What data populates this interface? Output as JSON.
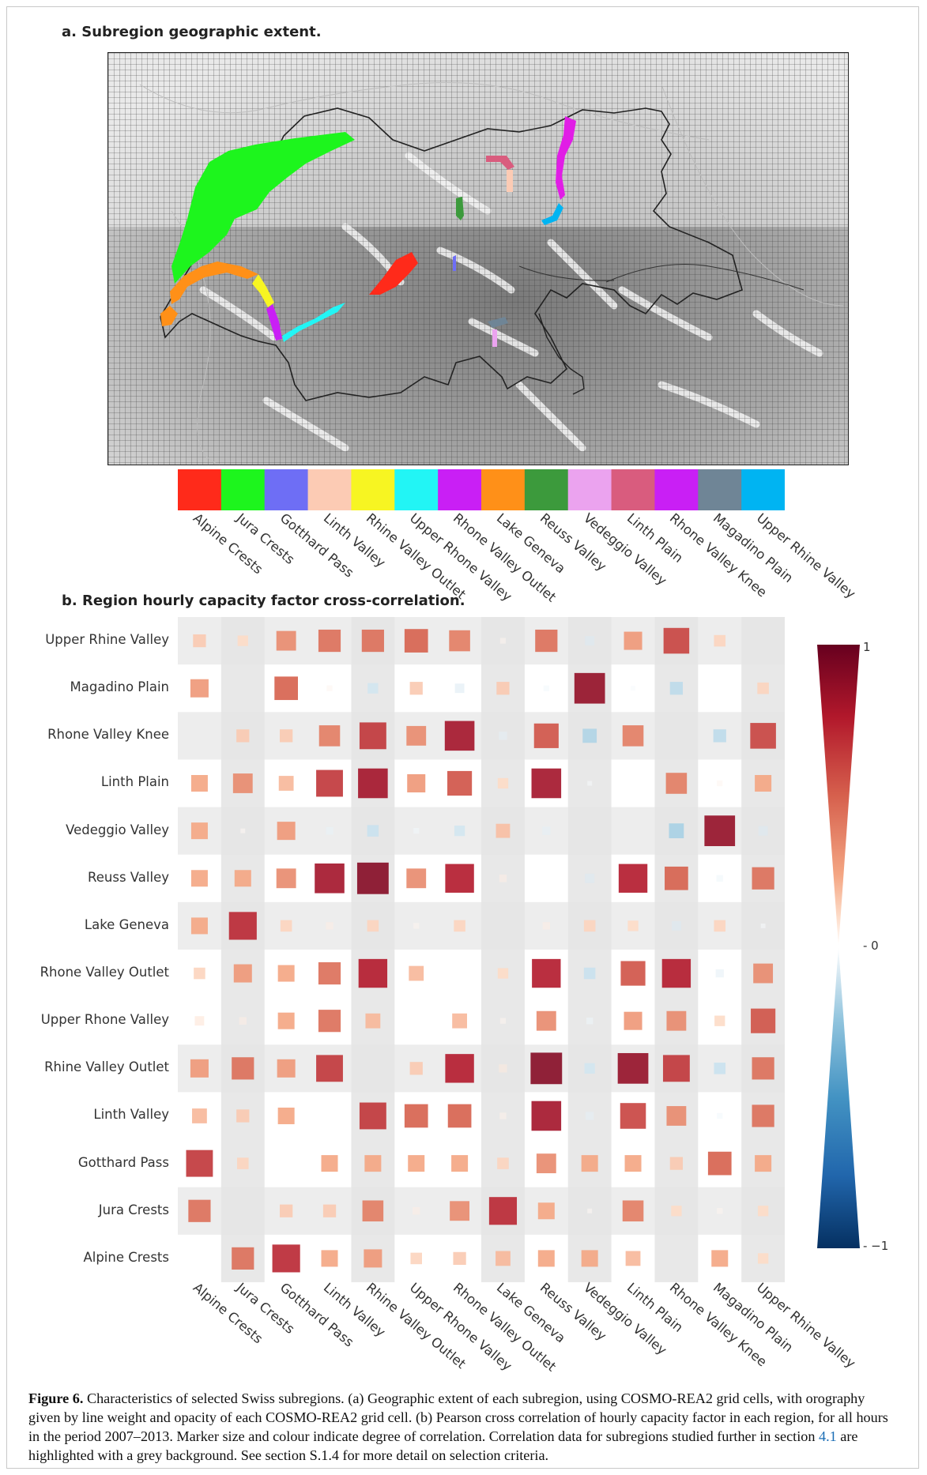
{
  "panel_a": {
    "title": "a. Subregion geographic extent."
  },
  "panel_b": {
    "title": "b. Region hourly capacity factor cross-correlation."
  },
  "colors": {
    "Alpine Crests": "#ff2a1a",
    "Jura Crests": "#1df51d",
    "Gotthard Pass": "#6e6ef5",
    "Linth Valley": "#fccbb4",
    "Rhine Valley Outlet": "#f7f522",
    "Upper Rhone Valley": "#22f5f5",
    "Rhone Valley Outlet": "#c91ff5",
    "Lake Geneva": "#ff9018",
    "Reuss Valley": "#3c9a3c",
    "Vedeggio Valley": "#eba3ef",
    "Linth Plain": "#d95c7e",
    "Rhone Valley Knee": "#c91ff5",
    "Magadino Plain": "#6f8596",
    "Upper Rhine Valley": "#00b4f2"
  },
  "chart_data": {
    "type": "heatmap",
    "title": "b. Region hourly capacity factor cross-correlation.",
    "regions_x": [
      "Alpine Crests",
      "Jura Crests",
      "Gotthard Pass",
      "Linth Valley",
      "Rhine Valley Outlet",
      "Upper Rhone Valley",
      "Rhone Valley Outlet",
      "Lake Geneva",
      "Reuss Valley",
      "Vedeggio Valley",
      "Linth Plain",
      "Rhone Valley Knee",
      "Magadino Plain",
      "Upper Rhine Valley"
    ],
    "regions_y": [
      "Upper Rhine Valley",
      "Magadino Plain",
      "Rhone Valley Knee",
      "Linth Plain",
      "Vedeggio Valley",
      "Reuss Valley",
      "Lake Geneva",
      "Rhone Valley Outlet",
      "Upper Rhone Valley",
      "Rhine Valley Outlet",
      "Linth Valley",
      "Gotthard Pass",
      "Jura Crests",
      "Alpine Crests"
    ],
    "highlight_x": [
      "Jura Crests",
      "Rhine Valley Outlet",
      "Lake Geneva",
      "Vedeggio Valley",
      "Rhone Valley Knee",
      "Upper Rhine Valley"
    ],
    "highlight_y": [
      "Upper Rhine Valley",
      "Rhone Valley Knee",
      "Vedeggio Valley",
      "Lake Geneva",
      "Rhine Valley Outlet",
      "Jura Crests"
    ],
    "matrix": [
      [
        0.15,
        0.1,
        0.35,
        0.45,
        0.45,
        0.5,
        0.4,
        0.03,
        0.45,
        -0.08,
        0.3,
        0.6,
        0.12,
        0
      ],
      [
        0.3,
        0,
        0.5,
        0.03,
        -0.1,
        0.15,
        -0.08,
        0.15,
        -0.03,
        0.85,
        -0.02,
        -0.15,
        0,
        0.12
      ],
      [
        0,
        0.15,
        0.15,
        0.4,
        0.65,
        0.35,
        0.8,
        -0.06,
        0.55,
        -0.18,
        0.4,
        0,
        -0.15,
        0.6
      ],
      [
        0.25,
        0.35,
        0.2,
        0.65,
        0.8,
        0.3,
        0.55,
        0.1,
        0.8,
        -0.02,
        0,
        0.4,
        0.03,
        0.25
      ],
      [
        0.25,
        0.02,
        0.3,
        -0.05,
        -0.12,
        -0.03,
        -0.1,
        0.18,
        -0.06,
        0,
        0,
        -0.2,
        0.85,
        -0.08
      ],
      [
        0.25,
        0.25,
        0.35,
        0.8,
        0.9,
        0.35,
        0.75,
        0.05,
        0,
        -0.08,
        0.75,
        0.5,
        -0.04,
        0.45
      ],
      [
        0.25,
        0.7,
        0.12,
        0.05,
        0.12,
        0.03,
        0.12,
        0,
        0.05,
        0.12,
        0.1,
        -0.08,
        0.12,
        -0.02
      ],
      [
        0.12,
        0.3,
        0.25,
        0.45,
        0.75,
        0.2,
        0,
        0.1,
        0.75,
        -0.12,
        0.55,
        0.75,
        -0.06,
        0.35
      ],
      [
        0.08,
        0.05,
        0.25,
        0.45,
        0.2,
        0,
        0.2,
        0.03,
        0.35,
        -0.04,
        0.3,
        0.35,
        0.1,
        0.55
      ],
      [
        0.3,
        0.45,
        0.3,
        0.65,
        0,
        0.15,
        0.75,
        0.06,
        0.9,
        -0.1,
        0.85,
        0.65,
        -0.12,
        0.45
      ],
      [
        0.2,
        0.15,
        0.25,
        0,
        0.65,
        0.5,
        0.5,
        0.04,
        0.8,
        -0.06,
        0.6,
        0.35,
        -0.03,
        0.45
      ],
      [
        0.65,
        0.12,
        0,
        0.25,
        0.25,
        0.25,
        0.25,
        0.12,
        0.35,
        0.25,
        0.25,
        0.15,
        0.5,
        0.25
      ],
      [
        0.45,
        0,
        0.15,
        0.15,
        0.4,
        0.05,
        0.35,
        0.7,
        0.25,
        0.02,
        0.4,
        0.1,
        0.03,
        0.1
      ],
      [
        0,
        0.45,
        0.7,
        0.25,
        0.3,
        0.12,
        0.15,
        0.2,
        0.25,
        0.25,
        0.2,
        0,
        0.25,
        0.1
      ]
    ],
    "colorbar": {
      "min": -1,
      "max": 1,
      "ticks": [
        "1",
        "- 0",
        "- −1"
      ]
    }
  },
  "caption": {
    "label": "Figure 6.",
    "text_before_link1": " Characteristics of selected Swiss subregions. (a) Geographic extent of each subregion, using COSMO-REA2 grid cells, with orography given by line weight and opacity of each COSMO-REA2 grid cell. (b) Pearson cross correlation of hourly capacity factor in each region, for all hours in the period 2007–2013. Marker size and colour indicate degree of correlation. Correlation data for subregions studied further in section ",
    "link1": "4.1",
    "text_after_link1": " are highlighted with a grey background. See section S.1.4 for more detail on selection criteria."
  }
}
